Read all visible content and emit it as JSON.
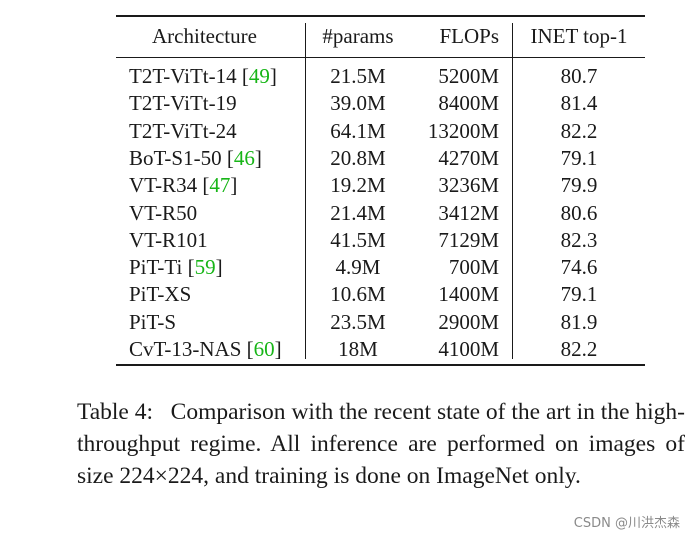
{
  "table": {
    "headers": {
      "architecture": "Architecture",
      "params": "#params",
      "flops": "FLOPs",
      "top1": "INET top-1"
    },
    "rows": [
      {
        "arch": "T2T-ViTt-14",
        "cite": "49",
        "params": "21.5M",
        "flops": "5200M",
        "top1": "80.7"
      },
      {
        "arch": "T2T-ViTt-19",
        "cite": "",
        "params": "39.0M",
        "flops": "8400M",
        "top1": "81.4"
      },
      {
        "arch": "T2T-ViTt-24",
        "cite": "",
        "params": "64.1M",
        "flops": "13200M",
        "top1": "82.2"
      },
      {
        "arch": "BoT-S1-50",
        "cite": "46",
        "params": "20.8M",
        "flops": "4270M",
        "top1": "79.1"
      },
      {
        "arch": "VT-R34",
        "cite": "47",
        "params": "19.2M",
        "flops": "3236M",
        "top1": "79.9"
      },
      {
        "arch": "VT-R50",
        "cite": "",
        "params": "21.4M",
        "flops": "3412M",
        "top1": "80.6"
      },
      {
        "arch": "VT-R101",
        "cite": "",
        "params": "41.5M",
        "flops": "7129M",
        "top1": "82.3"
      },
      {
        "arch": "PiT-Ti",
        "cite": "59",
        "params": "4.9M",
        "flops": "700M",
        "top1": "74.6"
      },
      {
        "arch": "PiT-XS",
        "cite": "",
        "params": "10.6M",
        "flops": "1400M",
        "top1": "79.1"
      },
      {
        "arch": "PiT-S",
        "cite": "",
        "params": "23.5M",
        "flops": "2900M",
        "top1": "81.9"
      },
      {
        "arch": "CvT-13-NAS",
        "cite": "60",
        "params": "18M",
        "flops": "4100M",
        "top1": "82.2"
      }
    ]
  },
  "caption": {
    "label": "Table 4:",
    "text": "Comparison with the recent state of the art in the high-throughput regime. All inference are performed on images of size 224×224, and training is done on ImageNet only."
  },
  "watermark": "CSDN @川洪杰森",
  "colors": {
    "citation": "#17b517",
    "text": "#1a1a1a"
  }
}
